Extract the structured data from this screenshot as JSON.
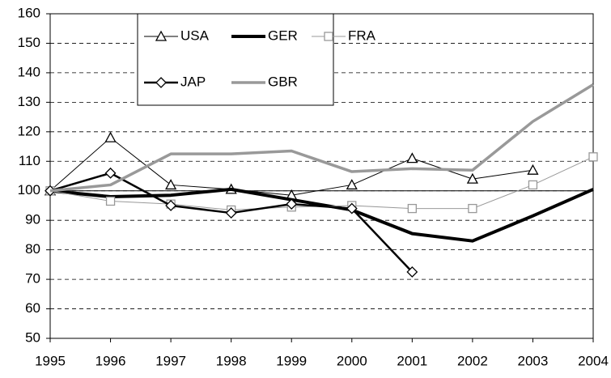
{
  "chart_data": {
    "type": "line",
    "x": [
      1995,
      1996,
      1997,
      1998,
      1999,
      2000,
      2001,
      2002,
      2003,
      2004
    ],
    "xlim": [
      1995,
      2004
    ],
    "xticks": [
      1995,
      1996,
      1997,
      1998,
      1999,
      2000,
      2001,
      2002,
      2003,
      2004
    ],
    "ylim": [
      50,
      160
    ],
    "yticks": [
      50,
      60,
      70,
      80,
      90,
      100,
      110,
      120,
      130,
      140,
      150,
      160
    ],
    "grid": true,
    "reference_line": 100,
    "series": [
      {
        "name": "USA",
        "color": "#000000",
        "width": 1,
        "marker": "triangle",
        "values": [
          100,
          118,
          102,
          100.5,
          98.5,
          102,
          111,
          104,
          107,
          null
        ]
      },
      {
        "name": "GER",
        "color": "#000000",
        "width": 4,
        "marker": "none",
        "values": [
          100,
          98,
          98.5,
          100.5,
          97,
          93.5,
          85.5,
          83,
          91.5,
          100.5
        ]
      },
      {
        "name": "FRA",
        "color": "#999999",
        "width": 1,
        "marker": "square",
        "values": [
          100,
          96.5,
          95.5,
          93.5,
          94.5,
          95,
          94,
          94,
          102,
          111.5
        ]
      },
      {
        "name": "JAP",
        "color": "#000000",
        "width": 2.5,
        "marker": "diamond",
        "values": [
          100,
          106,
          95,
          92.5,
          95.5,
          94,
          72.5,
          null,
          null,
          null
        ]
      },
      {
        "name": "GBR",
        "color": "#999999",
        "width": 3.5,
        "marker": "none",
        "values": [
          100,
          102,
          112.5,
          112.5,
          113.5,
          106.5,
          107.5,
          107,
          123.5,
          136
        ]
      }
    ]
  }
}
